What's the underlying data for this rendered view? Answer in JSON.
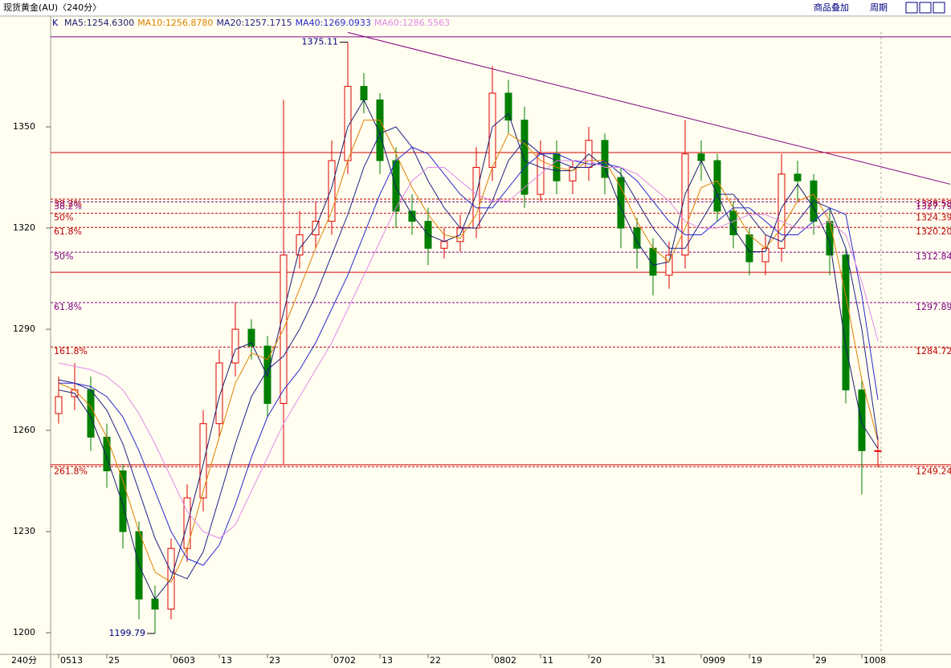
{
  "header": {
    "title": "现货黄金(AU)〈240分〉",
    "buttons": [
      "商品叠加",
      "周期"
    ]
  },
  "chart_data": {
    "type": "candlestick",
    "indicator_label": "K",
    "period_label": "240分",
    "categories": [
      "0513",
      null,
      null,
      "25",
      null,
      null,
      null,
      "0603",
      null,
      null,
      "13",
      null,
      null,
      "23",
      null,
      null,
      null,
      "0702",
      null,
      null,
      "13",
      null,
      null,
      "22",
      null,
      null,
      null,
      "0802",
      null,
      null,
      "11",
      null,
      null,
      "20",
      null,
      null,
      null,
      "31",
      null,
      null,
      "0909",
      null,
      null,
      "19",
      null,
      null,
      null,
      "29",
      null,
      null,
      "1008",
      null
    ],
    "open": [
      1265,
      1270,
      1272,
      1258,
      1248,
      1230,
      1210,
      1207,
      1225,
      1240,
      1262,
      1280,
      1290,
      1285,
      1268,
      1312,
      1318,
      1322,
      1340,
      1362,
      1358,
      1340,
      1325,
      1322,
      1314,
      1316,
      1320,
      1338,
      1360,
      1352,
      1330,
      1342,
      1334,
      1338,
      1346,
      1335,
      1320,
      1314,
      1306,
      1312,
      1342,
      1340,
      1325,
      1318,
      1310,
      1314,
      1336,
      1334,
      1322,
      1312,
      1272,
      1254
    ],
    "high": [
      1276,
      1280,
      1276,
      1262,
      1250,
      1233,
      1214,
      1228,
      1244,
      1266,
      1284,
      1298,
      1293,
      1288,
      1358,
      1325,
      1328,
      1346,
      1375.11,
      1366,
      1360,
      1344,
      1330,
      1326,
      1320,
      1324,
      1344,
      1368,
      1364,
      1356,
      1346,
      1346,
      1340,
      1350,
      1348,
      1338,
      1323,
      1317,
      1316,
      1352,
      1346,
      1342,
      1328,
      1320,
      1318,
      1342,
      1340,
      1336,
      1326,
      1314,
      1275,
      1258
    ],
    "low": [
      1262,
      1266,
      1254,
      1243,
      1225,
      1204,
      1199.79,
      1204,
      1221,
      1236,
      1258,
      1276,
      1281,
      1264,
      1250,
      1308,
      1314,
      1318,
      1336,
      1354,
      1336,
      1320,
      1318,
      1309,
      1311,
      1313,
      1317,
      1334,
      1348,
      1326,
      1328,
      1330,
      1330,
      1334,
      1330,
      1314,
      1308,
      1300,
      1302,
      1308,
      1334,
      1322,
      1314,
      1306,
      1306,
      1310,
      1328,
      1318,
      1306,
      1268,
      1241,
      1249
    ],
    "close": [
      1270,
      1272,
      1258,
      1248,
      1230,
      1210,
      1207,
      1225,
      1240,
      1262,
      1280,
      1290,
      1285,
      1268,
      1312,
      1318,
      1322,
      1340,
      1362,
      1358,
      1340,
      1325,
      1322,
      1314,
      1316,
      1320,
      1338,
      1360,
      1352,
      1330,
      1342,
      1334,
      1338,
      1346,
      1335,
      1320,
      1314,
      1306,
      1312,
      1342,
      1340,
      1325,
      1318,
      1310,
      1314,
      1336,
      1334,
      1322,
      1312,
      1272,
      1254,
      1254
    ],
    "up_color": "#e00000",
    "down_color": "#008000",
    "series": [
      {
        "name": "MA5:1254.6300",
        "color": "#1a1a6e",
        "values": [
          1272,
          1271,
          1264,
          1252,
          1238,
          1220,
          1210,
          1216,
          1232,
          1250,
          1270,
          1284,
          1286,
          1276,
          1295,
          1314,
          1320,
          1332,
          1350,
          1358,
          1348,
          1332,
          1324,
          1318,
          1316,
          1318,
          1330,
          1350,
          1354,
          1340,
          1338,
          1337,
          1337,
          1342,
          1338,
          1326,
          1316,
          1309,
          1310,
          1330,
          1340,
          1330,
          1320,
          1313,
          1313,
          1326,
          1333,
          1326,
          1316,
          1285,
          1262,
          1254.63
        ]
      },
      {
        "name": "MA10:1256.8780",
        "color": "#e08000",
        "values": [
          1274,
          1272,
          1267,
          1258,
          1245,
          1230,
          1218,
          1215,
          1225,
          1242,
          1258,
          1274,
          1283,
          1281,
          1290,
          1302,
          1314,
          1325,
          1340,
          1352,
          1352,
          1342,
          1332,
          1324,
          1318,
          1317,
          1324,
          1338,
          1348,
          1345,
          1340,
          1338,
          1337,
          1340,
          1340,
          1332,
          1322,
          1314,
          1310,
          1320,
          1332,
          1334,
          1326,
          1318,
          1314,
          1320,
          1328,
          1330,
          1322,
          1300,
          1275,
          1256.878
        ]
      },
      {
        "name": "MA20:1257.1715",
        "color": "#20208a",
        "values": [
          1275,
          1274,
          1272,
          1266,
          1256,
          1242,
          1228,
          1218,
          1216,
          1224,
          1240,
          1256,
          1270,
          1278,
          1282,
          1290,
          1300,
          1312,
          1324,
          1338,
          1348,
          1350,
          1344,
          1334,
          1326,
          1320,
          1320,
          1328,
          1340,
          1346,
          1342,
          1340,
          1338,
          1338,
          1340,
          1336,
          1328,
          1320,
          1314,
          1314,
          1322,
          1330,
          1330,
          1324,
          1318,
          1316,
          1322,
          1328,
          1326,
          1314,
          1290,
          1257.1715
        ]
      },
      {
        "name": "MA40:1269.0933",
        "color": "#2828d0",
        "values": [
          1274,
          1274,
          1273,
          1270,
          1264,
          1254,
          1242,
          1230,
          1222,
          1220,
          1226,
          1238,
          1252,
          1264,
          1272,
          1278,
          1286,
          1296,
          1306,
          1318,
          1330,
          1340,
          1344,
          1342,
          1336,
          1330,
          1326,
          1326,
          1332,
          1338,
          1342,
          1342,
          1340,
          1339,
          1339,
          1338,
          1334,
          1328,
          1322,
          1318,
          1318,
          1322,
          1326,
          1326,
          1322,
          1318,
          1318,
          1322,
          1326,
          1324,
          1300,
          1269.0933
        ]
      },
      {
        "name": "MA60:1286.5563",
        "color": "#e088e8",
        "values": [
          1280,
          1279,
          1278,
          1276,
          1272,
          1265,
          1256,
          1246,
          1236,
          1230,
          1228,
          1232,
          1242,
          1252,
          1262,
          1270,
          1278,
          1286,
          1296,
          1306,
          1316,
          1326,
          1334,
          1338,
          1338,
          1334,
          1330,
          1328,
          1328,
          1332,
          1336,
          1340,
          1340,
          1340,
          1338,
          1338,
          1336,
          1332,
          1328,
          1322,
          1320,
          1320,
          1322,
          1324,
          1324,
          1322,
          1320,
          1320,
          1322,
          1318,
          1304,
          1286.5563
        ]
      }
    ],
    "ylim": [
      1193.6,
      1378.1
    ],
    "yticks": [
      1200,
      1230,
      1260,
      1290,
      1320,
      1350
    ],
    "fib_levels": [
      {
        "label": "38.2%",
        "value": 1328.58,
        "color": "#c00000"
      },
      {
        "label": "38.2%",
        "value": 1327.79,
        "color": "#800080"
      },
      {
        "label": "50%",
        "value": 1324.39,
        "color": "#c00000"
      },
      {
        "label": "61.8%",
        "value": {
          "value": 1320.2,
          "label": "1320.20"
        },
        "color": "#c00000"
      },
      {
        "label": "50%",
        "value": 1312.84,
        "color": "#800080"
      },
      {
        "label": "61.8%",
        "value": 1297.89,
        "color": "#800080"
      },
      {
        "label": "161.8%",
        "value": 1284.72,
        "color": "#c00000"
      },
      {
        "label": "261.8%",
        "value": 1249.24,
        "color": "#c00000"
      }
    ],
    "lines": [
      {
        "value": 1376.7,
        "color": "#800080"
      },
      {
        "value": 1342.4,
        "color": "#d00000"
      },
      {
        "value": 1306.9,
        "color": "#d00000"
      },
      {
        "value": 1249.8,
        "color": "#d00000"
      }
    ],
    "trendline": {
      "x": [
        18,
        55.5
      ],
      "values": [
        1378,
        1333
      ],
      "color": "#800080"
    }
  }
}
